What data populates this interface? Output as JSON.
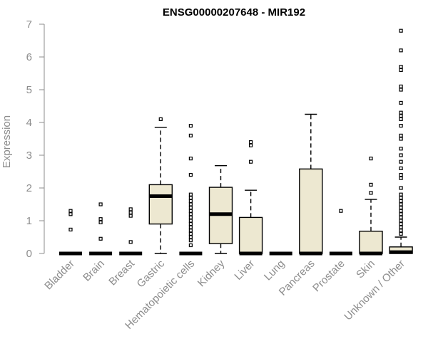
{
  "chart_data": {
    "type": "box",
    "title": "ENSG00000207648 - MIR192",
    "xlabel": "",
    "ylabel": "Expression",
    "ylim": [
      0,
      7
    ],
    "yticks": [
      0,
      1,
      2,
      3,
      4,
      5,
      6,
      7
    ],
    "grid": false,
    "colors": {
      "box_fill": "#ede8d1",
      "stroke": "#000000",
      "axis_text": "#8c8c8c"
    },
    "categories": [
      "Bladder",
      "Brain",
      "Breast",
      "Gastric",
      "Hematopoietic cells",
      "Kidney",
      "Liver",
      "Lung",
      "Pancreas",
      "Prostate",
      "Skin",
      "Unknown / Other"
    ],
    "boxes": [
      {
        "min": 0,
        "q1": 0,
        "median": 0,
        "q3": 0,
        "max": 0,
        "outliers": [
          0.73,
          1.2,
          1.3
        ]
      },
      {
        "min": 0,
        "q1": 0,
        "median": 0,
        "q3": 0,
        "max": 0,
        "outliers": [
          0.45,
          0.95,
          1.05,
          1.5
        ]
      },
      {
        "min": 0,
        "q1": 0,
        "median": 0,
        "q3": 0,
        "max": 0,
        "outliers": [
          0.35,
          1.15,
          1.25,
          1.35
        ]
      },
      {
        "min": 0,
        "q1": 0.9,
        "median": 1.75,
        "q3": 2.1,
        "max": 3.85,
        "outliers": [
          4.1
        ]
      },
      {
        "min": 0,
        "q1": 0,
        "median": 0,
        "q3": 0,
        "max": 0,
        "outliers": [
          0.25,
          0.4,
          0.5,
          0.6,
          0.7,
          0.8,
          0.9,
          1.0,
          1.1,
          1.2,
          1.3,
          1.4,
          1.5,
          1.6,
          1.7,
          1.8,
          2.4,
          2.9,
          3.6,
          3.9
        ]
      },
      {
        "min": 0,
        "q1": 0.3,
        "median": 1.2,
        "q3": 2.02,
        "max": 2.68,
        "outliers": []
      },
      {
        "min": 0,
        "q1": 0,
        "median": 0,
        "q3": 1.1,
        "max": 1.93,
        "outliers": [
          2.8,
          3.3,
          3.4
        ]
      },
      {
        "min": 0,
        "q1": 0,
        "median": 0,
        "q3": 0,
        "max": 0,
        "outliers": []
      },
      {
        "min": 0,
        "q1": 0,
        "median": 0,
        "q3": 2.58,
        "max": 4.25,
        "outliers": []
      },
      {
        "min": 0,
        "q1": 0,
        "median": 0,
        "q3": 0,
        "max": 0,
        "outliers": [
          1.3
        ]
      },
      {
        "min": 0,
        "q1": 0,
        "median": 0,
        "q3": 0.68,
        "max": 1.65,
        "outliers": [
          1.85,
          2.1,
          2.9
        ]
      },
      {
        "min": 0,
        "q1": 0,
        "median": 0.04,
        "q3": 0.2,
        "max": 0.5,
        "outliers": [
          0.6,
          0.7,
          0.8,
          0.9,
          1.0,
          1.1,
          1.2,
          1.3,
          1.4,
          1.5,
          1.6,
          1.7,
          1.8,
          2.0,
          2.3,
          2.4,
          2.6,
          2.8,
          3.0,
          3.2,
          3.5,
          3.6,
          3.9,
          4.1,
          4.2,
          4.3,
          4.6,
          5.0,
          5.1,
          5.6,
          5.7,
          6.2,
          6.8
        ]
      }
    ]
  }
}
